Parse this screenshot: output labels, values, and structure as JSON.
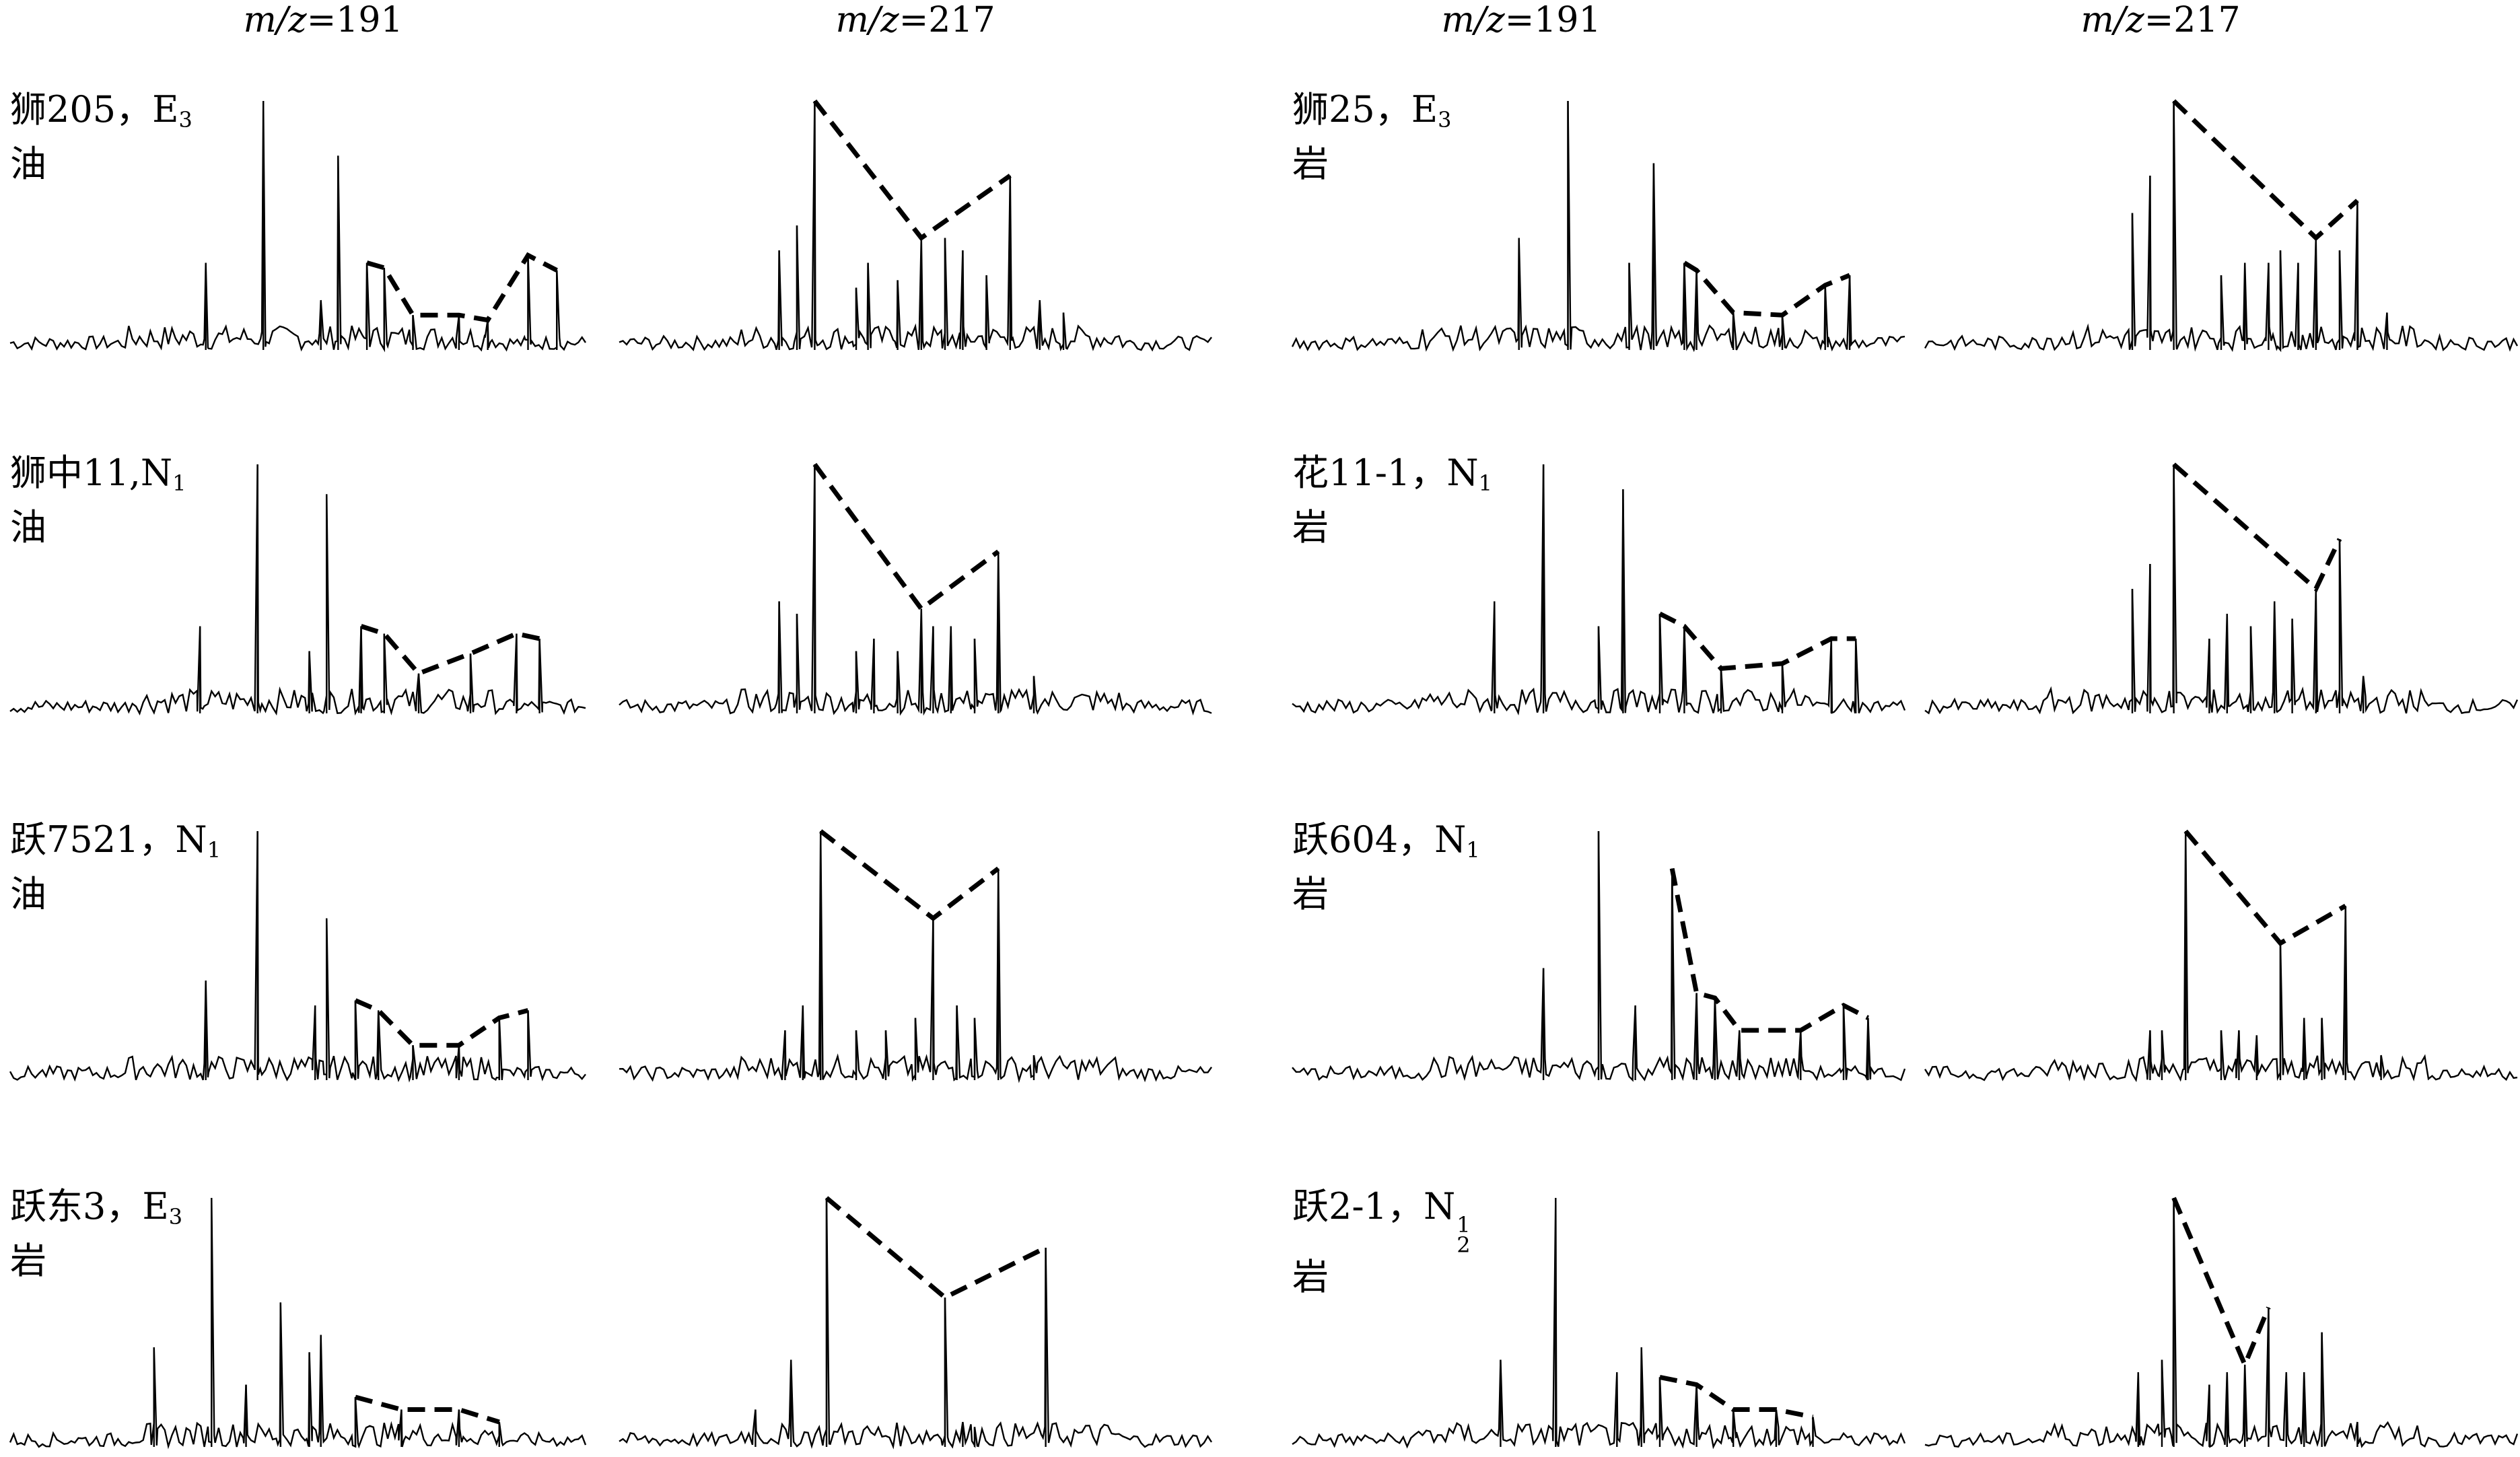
{
  "column_titles": [
    {
      "prefix": "m/z",
      "value": "=191"
    },
    {
      "prefix": "m/z",
      "value": "=217"
    },
    {
      "prefix": "m/z",
      "value": "=191"
    },
    {
      "prefix": "m/z",
      "value": "=217"
    }
  ],
  "chart_data": {
    "type": "line",
    "samples": [
      {
        "well": "狮205，E",
        "sub": "3",
        "sup": "",
        "lithology": "油",
        "side": "left"
      },
      {
        "well": "狮中11,N",
        "sub": "1",
        "sup": "",
        "lithology": "油",
        "side": "left"
      },
      {
        "well": "跃7521，N",
        "sub": "1",
        "sup": "",
        "lithology": "油",
        "side": "left"
      },
      {
        "well": "跃东3，E",
        "sub": "3",
        "sup": "",
        "lithology": "岩",
        "side": "left"
      },
      {
        "well": "狮25，E",
        "sub": "3",
        "sup": "",
        "lithology": "岩",
        "side": "right"
      },
      {
        "well": "花11-1，N",
        "sub": "1",
        "sup": "",
        "lithology": "岩",
        "side": "right"
      },
      {
        "well": "跃604，N",
        "sub": "1",
        "sup": "",
        "lithology": "岩",
        "side": "right"
      },
      {
        "well": "跃2-1，N",
        "sub": "2",
        "sup": "1",
        "lithology": "岩",
        "side": "right"
      }
    ],
    "m191_peaks": [
      [
        [
          0.34,
          0.35
        ],
        [
          0.44,
          1.0
        ],
        [
          0.54,
          0.2
        ],
        [
          0.57,
          0.78
        ],
        [
          0.62,
          0.35
        ],
        [
          0.65,
          0.33
        ],
        [
          0.7,
          0.14
        ],
        [
          0.78,
          0.14
        ],
        [
          0.83,
          0.12
        ],
        [
          0.9,
          0.38
        ],
        [
          0.95,
          0.32
        ]
      ],
      [
        [
          0.33,
          0.35
        ],
        [
          0.43,
          1.0
        ],
        [
          0.52,
          0.25
        ],
        [
          0.55,
          0.88
        ],
        [
          0.61,
          0.35
        ],
        [
          0.65,
          0.32
        ],
        [
          0.71,
          0.16
        ],
        [
          0.8,
          0.24
        ],
        [
          0.88,
          0.32
        ],
        [
          0.92,
          0.3
        ]
      ],
      [
        [
          0.34,
          0.4
        ],
        [
          0.43,
          1.0
        ],
        [
          0.53,
          0.3
        ],
        [
          0.55,
          0.65
        ],
        [
          0.6,
          0.32
        ],
        [
          0.64,
          0.28
        ],
        [
          0.7,
          0.14
        ],
        [
          0.78,
          0.14
        ],
        [
          0.85,
          0.25
        ],
        [
          0.9,
          0.28
        ]
      ],
      [
        [
          0.25,
          0.4
        ],
        [
          0.35,
          1.0
        ],
        [
          0.41,
          0.25
        ],
        [
          0.47,
          0.58
        ],
        [
          0.52,
          0.38
        ],
        [
          0.54,
          0.45
        ],
        [
          0.6,
          0.2
        ],
        [
          0.68,
          0.15
        ],
        [
          0.78,
          0.15
        ],
        [
          0.85,
          0.1
        ]
      ],
      [
        [
          0.37,
          0.45
        ],
        [
          0.45,
          1.0
        ],
        [
          0.55,
          0.35
        ],
        [
          0.59,
          0.75
        ],
        [
          0.64,
          0.35
        ],
        [
          0.66,
          0.32
        ],
        [
          0.72,
          0.15
        ],
        [
          0.8,
          0.14
        ],
        [
          0.87,
          0.26
        ],
        [
          0.91,
          0.3
        ]
      ],
      [
        [
          0.33,
          0.45
        ],
        [
          0.41,
          1.0
        ],
        [
          0.5,
          0.35
        ],
        [
          0.54,
          0.9
        ],
        [
          0.6,
          0.4
        ],
        [
          0.64,
          0.35
        ],
        [
          0.7,
          0.18
        ],
        [
          0.8,
          0.2
        ],
        [
          0.88,
          0.3
        ],
        [
          0.92,
          0.3
        ]
      ],
      [
        [
          0.41,
          0.45
        ],
        [
          0.5,
          1.0
        ],
        [
          0.56,
          0.3
        ],
        [
          0.62,
          0.85
        ],
        [
          0.66,
          0.35
        ],
        [
          0.69,
          0.33
        ],
        [
          0.73,
          0.2
        ],
        [
          0.83,
          0.2
        ],
        [
          0.9,
          0.3
        ],
        [
          0.94,
          0.25
        ]
      ],
      [
        [
          0.34,
          0.35
        ],
        [
          0.43,
          1.0
        ],
        [
          0.53,
          0.3
        ],
        [
          0.57,
          0.4
        ],
        [
          0.6,
          0.28
        ],
        [
          0.66,
          0.25
        ],
        [
          0.72,
          0.15
        ],
        [
          0.79,
          0.15
        ],
        [
          0.85,
          0.12
        ]
      ]
    ],
    "m217_peaks": [
      [
        [
          0.27,
          0.4
        ],
        [
          0.3,
          0.5
        ],
        [
          0.33,
          1.0
        ],
        [
          0.4,
          0.25
        ],
        [
          0.42,
          0.35
        ],
        [
          0.47,
          0.28
        ],
        [
          0.51,
          0.45
        ],
        [
          0.55,
          0.45
        ],
        [
          0.58,
          0.4
        ],
        [
          0.62,
          0.3
        ],
        [
          0.66,
          0.7
        ],
        [
          0.71,
          0.2
        ],
        [
          0.75,
          0.15
        ]
      ],
      [
        [
          0.27,
          0.45
        ],
        [
          0.3,
          0.4
        ],
        [
          0.33,
          1.0
        ],
        [
          0.4,
          0.25
        ],
        [
          0.43,
          0.3
        ],
        [
          0.47,
          0.25
        ],
        [
          0.51,
          0.42
        ],
        [
          0.53,
          0.35
        ],
        [
          0.56,
          0.35
        ],
        [
          0.6,
          0.3
        ],
        [
          0.64,
          0.65
        ],
        [
          0.7,
          0.15
        ]
      ],
      [
        [
          0.28,
          0.2
        ],
        [
          0.31,
          0.3
        ],
        [
          0.34,
          1.0
        ],
        [
          0.4,
          0.2
        ],
        [
          0.45,
          0.2
        ],
        [
          0.5,
          0.25
        ],
        [
          0.53,
          0.65
        ],
        [
          0.57,
          0.3
        ],
        [
          0.6,
          0.25
        ],
        [
          0.64,
          0.85
        ],
        [
          0.7,
          0.1
        ]
      ],
      [
        [
          0.29,
          0.35
        ],
        [
          0.35,
          1.0
        ],
        [
          0.55,
          0.6
        ],
        [
          0.58,
          0.1
        ],
        [
          0.72,
          0.8
        ],
        [
          0.6,
          0.08
        ],
        [
          0.23,
          0.15
        ]
      ],
      [
        [
          0.35,
          0.55
        ],
        [
          0.38,
          0.7
        ],
        [
          0.42,
          1.0
        ],
        [
          0.5,
          0.3
        ],
        [
          0.54,
          0.35
        ],
        [
          0.58,
          0.35
        ],
        [
          0.6,
          0.4
        ],
        [
          0.63,
          0.35
        ],
        [
          0.66,
          0.45
        ],
        [
          0.7,
          0.4
        ],
        [
          0.73,
          0.6
        ],
        [
          0.78,
          0.15
        ]
      ],
      [
        [
          0.35,
          0.5
        ],
        [
          0.38,
          0.6
        ],
        [
          0.42,
          1.0
        ],
        [
          0.48,
          0.3
        ],
        [
          0.51,
          0.4
        ],
        [
          0.55,
          0.35
        ],
        [
          0.59,
          0.45
        ],
        [
          0.62,
          0.38
        ],
        [
          0.66,
          0.5
        ],
        [
          0.7,
          0.7
        ],
        [
          0.74,
          0.15
        ]
      ],
      [
        [
          0.38,
          0.2
        ],
        [
          0.4,
          0.2
        ],
        [
          0.44,
          1.0
        ],
        [
          0.5,
          0.2
        ],
        [
          0.53,
          0.2
        ],
        [
          0.56,
          0.18
        ],
        [
          0.6,
          0.55
        ],
        [
          0.64,
          0.25
        ],
        [
          0.67,
          0.25
        ],
        [
          0.71,
          0.7
        ],
        [
          0.77,
          0.1
        ]
      ],
      [
        [
          0.36,
          0.3
        ],
        [
          0.4,
          0.35
        ],
        [
          0.42,
          1.0
        ],
        [
          0.48,
          0.25
        ],
        [
          0.51,
          0.3
        ],
        [
          0.54,
          0.33
        ],
        [
          0.58,
          0.56
        ],
        [
          0.61,
          0.3
        ],
        [
          0.64,
          0.3
        ],
        [
          0.67,
          0.46
        ],
        [
          0.73,
          0.1
        ]
      ]
    ]
  }
}
